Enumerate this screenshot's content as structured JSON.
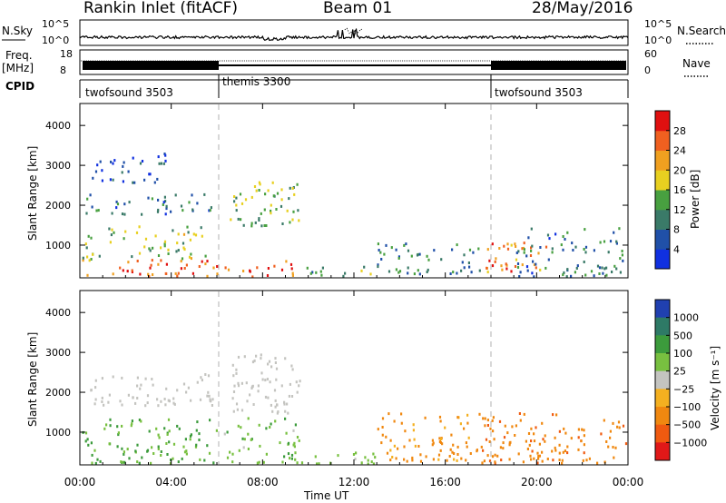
{
  "header": {
    "station": "Rankin Inlet (fitACF)",
    "beam": "Beam 01",
    "date": "28/May/2016"
  },
  "panel_labels": {
    "nsky": "N.Sky",
    "nsearch": "N.Search",
    "freq": "Freq.",
    "freq_unit": "[MHz]",
    "nave": "Nave",
    "cpid": "CPID"
  },
  "noise_axis": {
    "left_ticks": [
      "10^5",
      "10^0"
    ],
    "right_ticks": [
      "10^5",
      "10^0"
    ]
  },
  "freq_axis": {
    "left_ticks": [
      "18",
      "8"
    ],
    "right_ticks": [
      "60",
      "0"
    ]
  },
  "cpid_segments": [
    {
      "label": "twofsound 3503",
      "start_hour": 0,
      "end_hour": 6
    },
    {
      "label": "themis 3300",
      "start_hour": 6,
      "end_hour": 18
    },
    {
      "label": "twofsound 3503",
      "start_hour": 18,
      "end_hour": 24
    }
  ],
  "time_axis": {
    "title": "Time UT",
    "ticks": [
      "00:00",
      "04:00",
      "08:00",
      "12:00",
      "16:00",
      "20:00",
      "00:00"
    ],
    "range_hours": [
      0,
      24
    ]
  },
  "range_axis": {
    "title": "Slant Range [km]",
    "ticks": [
      "1000",
      "2000",
      "3000",
      "4000"
    ],
    "range_km": [
      180,
      4550
    ]
  },
  "power_scale": {
    "title": "Power [dB]",
    "labels": [
      "4",
      "8",
      "12",
      "16",
      "20",
      "24",
      "28"
    ],
    "colors": [
      "#1030e0",
      "#2050a8",
      "#3a7a68",
      "#48a040",
      "#e8d020",
      "#f0a020",
      "#f06020",
      "#e01010"
    ]
  },
  "velocity_scale": {
    "title": "Velocity [m s⁻¹]",
    "labels": [
      "1000",
      "500",
      "100",
      "25",
      "−25",
      "−100",
      "−500",
      "−1000"
    ],
    "colors": [
      "#2040b0",
      "#2e7a66",
      "#3c9b3c",
      "#78c040",
      "#c4c4c0",
      "#f4b020",
      "#f08810",
      "#f05a10",
      "#e01818"
    ]
  },
  "chart_data": [
    {
      "type": "heatmap",
      "title": "Power [dB]",
      "xlabel": "Time UT",
      "ylabel": "Slant Range [km]",
      "x_range_hours": [
        0,
        24
      ],
      "y_range_km": [
        180,
        4550
      ],
      "scatter_regions": [
        {
          "t": [
            0.1,
            6.0
          ],
          "r": [
            250,
            700
          ],
          "level": 26
        },
        {
          "t": [
            0.1,
            5.5
          ],
          "r": [
            650,
            1500
          ],
          "level": 15
        },
        {
          "t": [
            0.2,
            5.8
          ],
          "r": [
            1800,
            2300
          ],
          "level": 9
        },
        {
          "t": [
            0.5,
            3.8
          ],
          "r": [
            2600,
            3400
          ],
          "level": 5
        },
        {
          "t": [
            6.2,
            9.6
          ],
          "r": [
            200,
            650
          ],
          "level": 28
        },
        {
          "t": [
            6.5,
            9.6
          ],
          "r": [
            1500,
            2700
          ],
          "level": 14
        },
        {
          "t": [
            9.6,
            13.0
          ],
          "r": [
            200,
            500
          ],
          "level": 12
        },
        {
          "t": [
            13.0,
            17.5
          ],
          "r": [
            300,
            1100
          ],
          "level": 10
        },
        {
          "t": [
            17.5,
            20.5
          ],
          "r": [
            350,
            1100
          ],
          "level": 24
        },
        {
          "t": [
            19.0,
            24.0
          ],
          "r": [
            200,
            1500
          ],
          "level": 9
        }
      ]
    },
    {
      "type": "heatmap",
      "title": "Velocity [m s⁻¹]",
      "xlabel": "Time UT",
      "ylabel": "Slant Range [km]",
      "x_range_hours": [
        0,
        24
      ],
      "y_range_km": [
        180,
        4550
      ],
      "scatter_regions": [
        {
          "t": [
            0.1,
            6.0
          ],
          "r": [
            250,
            1400
          ],
          "level": 120
        },
        {
          "t": [
            0.3,
            5.8
          ],
          "r": [
            1700,
            2500
          ],
          "level": 0
        },
        {
          "t": [
            6.2,
            9.6
          ],
          "r": [
            250,
            1400
          ],
          "level": 80
        },
        {
          "t": [
            6.5,
            9.6
          ],
          "r": [
            1500,
            3000
          ],
          "level": 0
        },
        {
          "t": [
            9.6,
            13.0
          ],
          "r": [
            200,
            600
          ],
          "level": 60
        },
        {
          "t": [
            13.0,
            17.5
          ],
          "r": [
            300,
            1500
          ],
          "level": -150
        },
        {
          "t": [
            17.5,
            24.0
          ],
          "r": [
            250,
            1500
          ],
          "level": -350
        }
      ]
    }
  ]
}
